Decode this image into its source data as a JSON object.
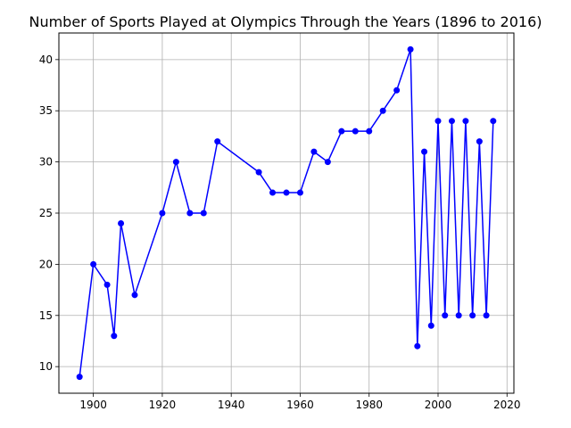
{
  "chart_data": {
    "type": "line",
    "title": "Number of Sports Played at Olympics Through the Years (1896 to 2016)",
    "xlabel": "",
    "ylabel": "",
    "xlim": [
      1890,
      2022
    ],
    "ylim": [
      7.4,
      42.6
    ],
    "x_ticks": [
      1900,
      1920,
      1940,
      1960,
      1980,
      2000,
      2020
    ],
    "y_ticks": [
      10,
      15,
      20,
      25,
      30,
      35,
      40
    ],
    "grid": true,
    "line_color": "#0000ff",
    "marker_color": "#0000ff",
    "series": [
      {
        "x": [
          1896,
          1900,
          1904,
          1906,
          1908,
          1912,
          1920,
          1924,
          1928,
          1932,
          1936,
          1948,
          1952,
          1956,
          1960,
          1964,
          1968,
          1972,
          1976,
          1980,
          1984,
          1988,
          1992,
          1994,
          1996,
          1998,
          2000,
          2002,
          2004,
          2006,
          2008,
          2010,
          2012,
          2014,
          2016
        ],
        "y": [
          9,
          20,
          18,
          13,
          24,
          17,
          25,
          30,
          25,
          25,
          32,
          29,
          27,
          27,
          27,
          31,
          30,
          33,
          33,
          33,
          35,
          37,
          41,
          12,
          31,
          14,
          34,
          15,
          34,
          15,
          34,
          15,
          32,
          15,
          34
        ]
      }
    ]
  }
}
